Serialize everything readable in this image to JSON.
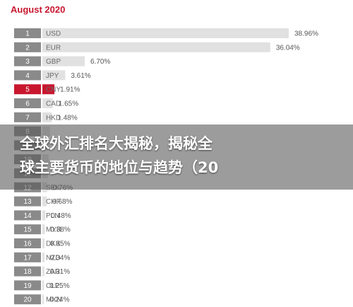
{
  "chart_data": {
    "type": "bar",
    "orientation": "horizontal",
    "title": "August 2020",
    "ranks": [
      "1",
      "2",
      "3",
      "4",
      "5",
      "6",
      "7",
      "8",
      "9",
      "10",
      "11",
      "12",
      "13",
      "14",
      "15",
      "16",
      "17",
      "18",
      "19",
      "20"
    ],
    "categories": [
      "USD",
      "EUR",
      "GBP",
      "JPY",
      "CNY",
      "CAD",
      "HKD",
      "",
      "",
      "",
      "",
      "SEK",
      "CHF",
      "PLN",
      "MYR",
      "DKK",
      "NZD",
      "ZAR",
      "CLP",
      "MXN"
    ],
    "values": [
      38.96,
      36.04,
      6.7,
      3.61,
      1.91,
      1.65,
      1.48,
      1.2,
      1.1,
      1.0,
      0.9,
      0.76,
      0.68,
      0.48,
      0.38,
      0.35,
      0.34,
      0.31,
      0.25,
      0.24
    ],
    "value_labels": [
      "38.96%",
      "36.04%",
      "6.70%",
      "3.61%",
      "1.91%",
      "1.65%",
      "1.48%",
      "",
      "",
      "",
      "",
      "0.76%",
      "0.68%",
      "0.48%",
      "0.38%",
      "0.35%",
      "0.34%",
      "0.31%",
      "0.25%",
      "0.24%"
    ],
    "highlight_index": 4,
    "colors": {
      "title": "#c8172e",
      "rank_box": "#8a8a8a",
      "bar": "#e1e1e1",
      "highlight": "#c8172e"
    }
  },
  "overlay": {
    "line1": "全球外汇排名大揭秘，揭秘全",
    "line2": "球主要货币的地位与趋势（20"
  }
}
